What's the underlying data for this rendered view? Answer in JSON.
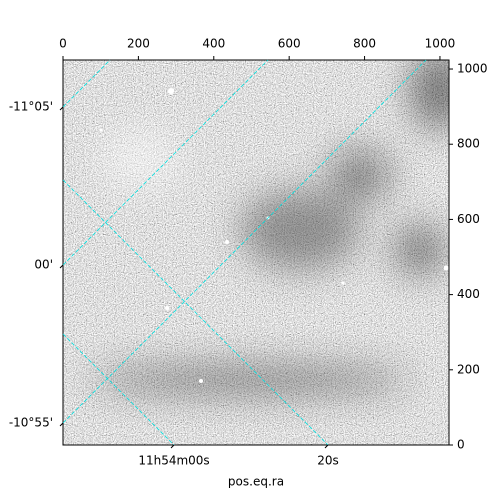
{
  "chart_data": {
    "type": "image",
    "xlabel": "pos.eq.ra",
    "xlim": [
      0,
      1024
    ],
    "ylim": [
      0,
      1024
    ],
    "xticks": [
      0,
      200,
      400,
      600,
      800,
      1000
    ],
    "yticks": [
      0,
      200,
      400,
      600,
      800,
      1000
    ],
    "ra_ticks": [
      {
        "value": 178.5,
        "label": "11h54m00s"
      },
      {
        "value": 178.58333,
        "label": "20s"
      }
    ],
    "dec_ticks": [
      {
        "value": -11.08333,
        "label": "-11°05'"
      },
      {
        "value": -11.0,
        "label": "00'"
      },
      {
        "value": -10.91667,
        "label": "-10°55'"
      }
    ],
    "grid": true,
    "grid_color": "#00e0e0"
  }
}
